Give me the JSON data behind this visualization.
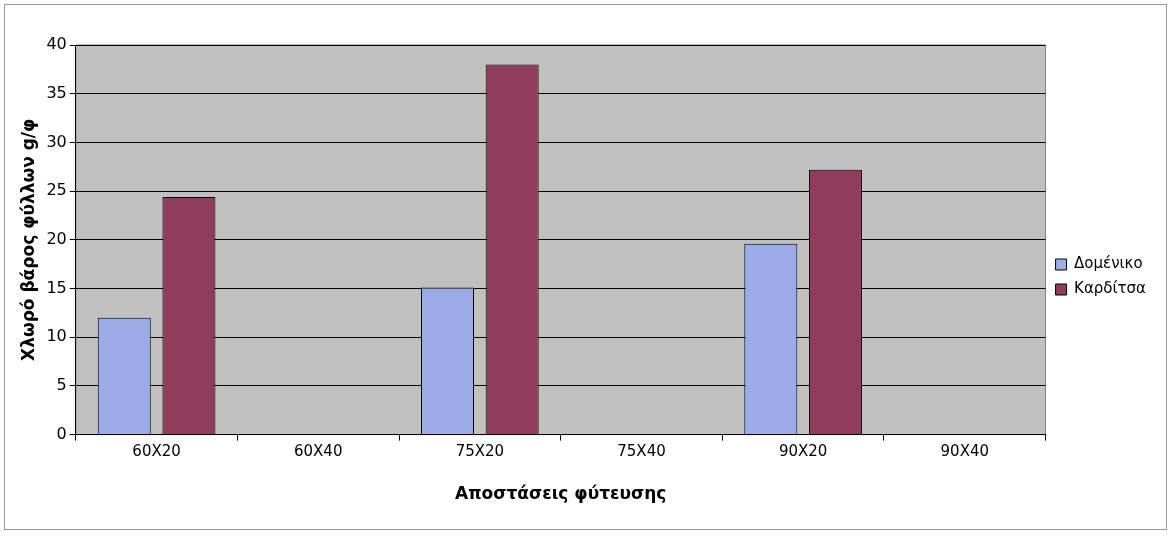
{
  "chart_data": {
    "type": "bar",
    "xlabel": "Αποστάσεις φύτευσης",
    "ylabel": "Χλωρό βάρος φύλλων g/φ",
    "categories": [
      "60X20",
      "60X40",
      "75X20",
      "75X40",
      "90X20",
      "90X40"
    ],
    "series": [
      {
        "name": "Δομένικο",
        "color": "#9aabe6",
        "values": [
          12,
          null,
          15.1,
          null,
          19.6,
          null
        ]
      },
      {
        "name": "Καρδίτσα",
        "color": "#8f3d5a",
        "values": [
          24.4,
          null,
          38,
          null,
          27.2,
          null
        ]
      }
    ],
    "ylim": [
      0,
      40
    ],
    "yticks": [
      0,
      5,
      10,
      15,
      20,
      25,
      30,
      35,
      40
    ],
    "grid": "y",
    "legend": "right"
  }
}
